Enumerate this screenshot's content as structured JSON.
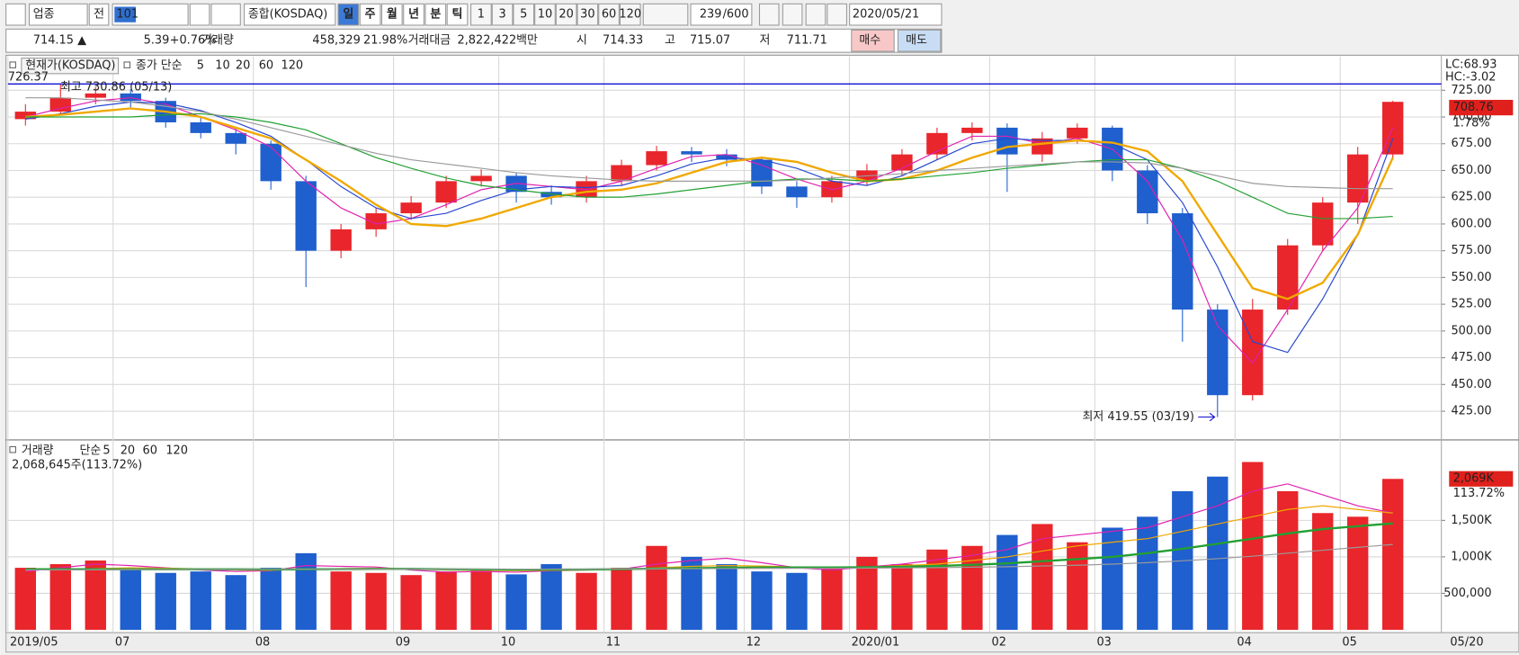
{
  "toolbar": {
    "sector": "업종",
    "prev": "전",
    "code": "101",
    "name": "종합(KOSDAQ)",
    "periods": [
      "일",
      "주",
      "월",
      "년",
      "분",
      "틱"
    ],
    "minutes": [
      "1",
      "3",
      "5",
      "10",
      "20",
      "30",
      "60",
      "120"
    ],
    "count": "239",
    "max_count": "/600",
    "date": "2020/05/21"
  },
  "quote_bar": {
    "price": "714.15 ▲",
    "change": "5.39",
    "change_pct": "+0.76%",
    "volume_label": "거래량",
    "volume": "458,329",
    "volume_pct": "21.98%",
    "amount_label": "거래대금",
    "amount": "2,822,422백만",
    "open_label": "시",
    "open": "714.33",
    "high_label": "고",
    "high": "715.07",
    "low_label": "저",
    "low": "711.71",
    "buy": "매수",
    "sell": "매도"
  },
  "chart_data": [
    {
      "type": "candlestick",
      "title": "현재가(KOSDAQ)",
      "ma_label": "종가 단순",
      "corner_value": "726.37",
      "categories": [
        "2019/05",
        null,
        null,
        "07",
        null,
        null,
        null,
        "08",
        null,
        null,
        null,
        "09",
        null,
        null,
        "10",
        null,
        null,
        "11",
        null,
        null,
        null,
        "12",
        null,
        null,
        "2020/01",
        null,
        null,
        null,
        "02",
        null,
        null,
        "03",
        null,
        null,
        null,
        "04",
        null,
        null,
        "05",
        null
      ],
      "open": [
        698,
        705,
        718,
        722,
        715,
        695,
        685,
        675,
        640,
        575,
        595,
        610,
        620,
        640,
        645,
        630,
        625,
        640,
        655,
        668,
        665,
        660,
        635,
        625,
        640,
        650,
        665,
        685,
        690,
        665,
        680,
        690,
        650,
        610,
        520,
        440,
        520,
        580,
        620,
        665
      ],
      "high": [
        712,
        730.86,
        728,
        726,
        718,
        700,
        690,
        678,
        645,
        600,
        615,
        626,
        645,
        651,
        648,
        636,
        645,
        660,
        673,
        672,
        670,
        662,
        640,
        645,
        656,
        670,
        690,
        695,
        694,
        686,
        694,
        692,
        655,
        615,
        525,
        530,
        586,
        625,
        672,
        715.07
      ],
      "low": [
        692,
        702,
        712,
        709,
        690,
        680,
        665,
        632,
        541,
        568,
        588,
        604,
        615,
        635,
        620,
        618,
        620,
        636,
        650,
        658,
        654,
        628,
        615,
        620,
        636,
        645,
        660,
        678,
        630,
        658,
        675,
        640,
        600,
        490,
        419.55,
        435,
        515,
        575,
        600,
        660
      ],
      "close": [
        705,
        718,
        722,
        715,
        695,
        685,
        675,
        640,
        575,
        595,
        610,
        620,
        640,
        645,
        630,
        625,
        640,
        655,
        668,
        665,
        660,
        635,
        625,
        640,
        650,
        665,
        685,
        690,
        665,
        680,
        690,
        650,
        610,
        520,
        440,
        520,
        580,
        620,
        665,
        714.15
      ],
      "up_color": "#e8262b",
      "down_color": "#1f5fce",
      "series": [
        {
          "name": "5",
          "color": "#e020b0",
          "values": [
            700,
            708,
            715,
            718,
            712,
            700,
            688,
            672,
            640,
            615,
            600,
            605,
            618,
            632,
            638,
            635,
            632,
            640,
            652,
            663,
            665,
            655,
            642,
            632,
            640,
            652,
            668,
            682,
            682,
            675,
            680,
            670,
            640,
            585,
            505,
            470,
            520,
            575,
            615,
            690
          ]
        },
        {
          "name": "10",
          "color": "#2848d0",
          "values": [
            698,
            703,
            710,
            714,
            713,
            706,
            695,
            682,
            660,
            635,
            615,
            605,
            610,
            622,
            632,
            635,
            634,
            636,
            645,
            656,
            662,
            660,
            652,
            640,
            636,
            645,
            660,
            675,
            680,
            678,
            678,
            675,
            660,
            620,
            560,
            490,
            480,
            530,
            590,
            680
          ]
        },
        {
          "name": "20",
          "color": "#f0a800",
          "values": [
            700,
            702,
            705,
            708,
            705,
            700,
            690,
            680,
            660,
            640,
            618,
            600,
            598,
            605,
            615,
            625,
            630,
            632,
            638,
            648,
            658,
            662,
            658,
            648,
            640,
            642,
            650,
            662,
            672,
            675,
            678,
            676,
            668,
            640,
            590,
            540,
            530,
            545,
            590,
            662
          ]
        },
        {
          "name": "60",
          "color": "#22a032",
          "values": [
            700,
            700,
            700,
            700,
            702,
            703,
            700,
            695,
            688,
            675,
            662,
            652,
            643,
            636,
            632,
            628,
            625,
            625,
            628,
            632,
            636,
            640,
            642,
            642,
            640,
            642,
            645,
            648,
            652,
            655,
            658,
            660,
            660,
            652,
            640,
            625,
            610,
            605,
            605,
            607
          ]
        },
        {
          "name": "120",
          "color": "#9a9a9a",
          "values": [
            718,
            718,
            716,
            714,
            710,
            705,
            698,
            690,
            682,
            674,
            666,
            660,
            656,
            652,
            648,
            645,
            643,
            641,
            640,
            640,
            640,
            640,
            641,
            643,
            645,
            647,
            650,
            652,
            654,
            656,
            658,
            658,
            657,
            652,
            645,
            638,
            635,
            634,
            633,
            633
          ]
        }
      ],
      "ylim": [
        400,
        755
      ],
      "yticks": [
        {
          "value": 425,
          "label": "425.00"
        },
        {
          "value": 450,
          "label": "450.00"
        },
        {
          "value": 475,
          "label": "475.00"
        },
        {
          "value": 500,
          "label": "500.00"
        },
        {
          "value": 525,
          "label": "525.00"
        },
        {
          "value": 550,
          "label": "550.00"
        },
        {
          "value": 575,
          "label": "575.00"
        },
        {
          "value": 600,
          "label": "600.00"
        },
        {
          "value": 625,
          "label": "625.00"
        },
        {
          "value": 650,
          "label": "650.00"
        },
        {
          "value": 675,
          "label": "675.00"
        },
        {
          "value": 700,
          "label": "700.00"
        },
        {
          "value": 725,
          "label": "725.00"
        }
      ],
      "high_label": "최고 730.86 (05/13)",
      "low_label": "최저 419.55 (03/19)",
      "right_labels": [
        "LC:68.93",
        "HC:-3.02"
      ],
      "price_tag": 708.76,
      "price_tag_pct": "1.78%",
      "last_date": "05/20",
      "grid": true
    },
    {
      "type": "volume",
      "title": "거래량",
      "ma_label": "단순",
      "summary": "2,068,645주(113.72%)",
      "values": [
        850000,
        900000,
        950000,
        820000,
        780000,
        800000,
        750000,
        850000,
        1050000,
        800000,
        780000,
        750000,
        800000,
        820000,
        760000,
        900000,
        780000,
        850000,
        1150000,
        1000000,
        900000,
        800000,
        780000,
        850000,
        1000000,
        900000,
        1100000,
        1150000,
        1300000,
        1450000,
        1200000,
        1400000,
        1550000,
        1900000,
        2100000,
        2300000,
        1900000,
        1600000,
        1550000,
        2068645
      ],
      "series": [
        {
          "name": "5",
          "color": "#e020b0",
          "values": [
            800000,
            850000,
            900000,
            880000,
            850000,
            820000,
            800000,
            810000,
            880000,
            870000,
            860000,
            820000,
            790000,
            800000,
            790000,
            810000,
            820000,
            830000,
            900000,
            950000,
            980000,
            920000,
            850000,
            820000,
            860000,
            900000,
            960000,
            1020000,
            1100000,
            1250000,
            1300000,
            1350000,
            1400000,
            1550000,
            1700000,
            1900000,
            2000000,
            1850000,
            1700000,
            1600000
          ]
        },
        {
          "name": "20",
          "color": "#f0a800",
          "values": [
            820000,
            830000,
            840000,
            850000,
            845000,
            835000,
            820000,
            815000,
            830000,
            840000,
            845000,
            835000,
            820000,
            815000,
            810000,
            815000,
            820000,
            830000,
            850000,
            870000,
            880000,
            875000,
            860000,
            850000,
            860000,
            880000,
            900000,
            950000,
            1000000,
            1080000,
            1150000,
            1200000,
            1250000,
            1350000,
            1450000,
            1550000,
            1650000,
            1700000,
            1650000,
            1600000
          ]
        },
        {
          "name": "60",
          "color": "#22a032",
          "values": [
            830000,
            830000,
            830000,
            830000,
            830000,
            830000,
            830000,
            828000,
            830000,
            832000,
            835000,
            835000,
            830000,
            828000,
            825000,
            825000,
            828000,
            832000,
            840000,
            845000,
            850000,
            855000,
            855000,
            855000,
            858000,
            865000,
            875000,
            890000,
            910000,
            940000,
            970000,
            1000000,
            1050000,
            1110000,
            1180000,
            1250000,
            1320000,
            1380000,
            1420000,
            1460000
          ]
        },
        {
          "name": "120",
          "color": "#9a9a9a",
          "values": [
            820000,
            822000,
            824000,
            826000,
            828000,
            829000,
            830000,
            830000,
            831000,
            832000,
            833000,
            833000,
            833000,
            832000,
            832000,
            832000,
            833000,
            834000,
            836000,
            838000,
            840000,
            842000,
            843000,
            844000,
            846000,
            849000,
            853000,
            858000,
            865000,
            875000,
            885000,
            900000,
            920000,
            945000,
            975000,
            1010000,
            1050000,
            1090000,
            1130000,
            1170000
          ]
        }
      ],
      "ylim": [
        0,
        2550000
      ],
      "yticks": [
        {
          "value": 500000,
          "label": "500,000"
        },
        {
          "value": 1000000,
          "label": "1,000K"
        },
        {
          "value": 1500000,
          "label": "1,500K"
        }
      ],
      "tag": {
        "value": 2069000,
        "label": "2,069K"
      },
      "tag_pct": "113.72%"
    }
  ]
}
